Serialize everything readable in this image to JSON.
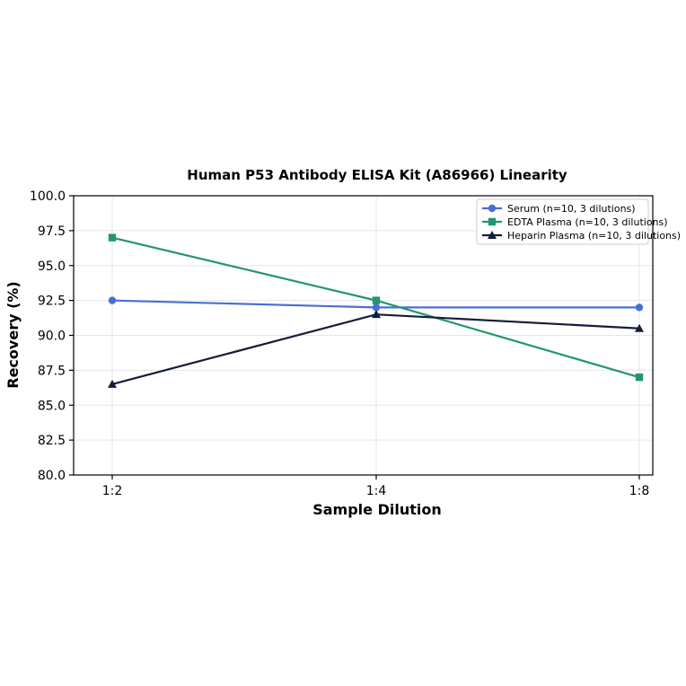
{
  "chart_data": {
    "type": "line",
    "title": "Human P53 Antibody ELISA Kit (A86966) Linearity",
    "xlabel": "Sample Dilution",
    "ylabel": "Recovery (%)",
    "categories": [
      "1:2",
      "1:4",
      "1:8"
    ],
    "ylim": [
      80.0,
      100.0
    ],
    "yticks": [
      "80.0",
      "82.5",
      "85.0",
      "87.5",
      "90.0",
      "92.5",
      "95.0",
      "97.5",
      "100.0"
    ],
    "grid": true,
    "legend_position": "top-right",
    "series": [
      {
        "name": "Serum (n=10, 3 dilutions)",
        "values": [
          92.5,
          92.0,
          92.0
        ],
        "color": "#4a6fd4",
        "marker": "circle"
      },
      {
        "name": "EDTA Plasma (n=10, 3 dilutions)",
        "values": [
          97.0,
          92.5,
          87.0
        ],
        "color": "#23966e",
        "marker": "square"
      },
      {
        "name": "Heparin Plasma (n=10, 3 dilutions)",
        "values": [
          86.5,
          91.5,
          90.5
        ],
        "color": "#141c3c",
        "marker": "triangle"
      }
    ]
  }
}
